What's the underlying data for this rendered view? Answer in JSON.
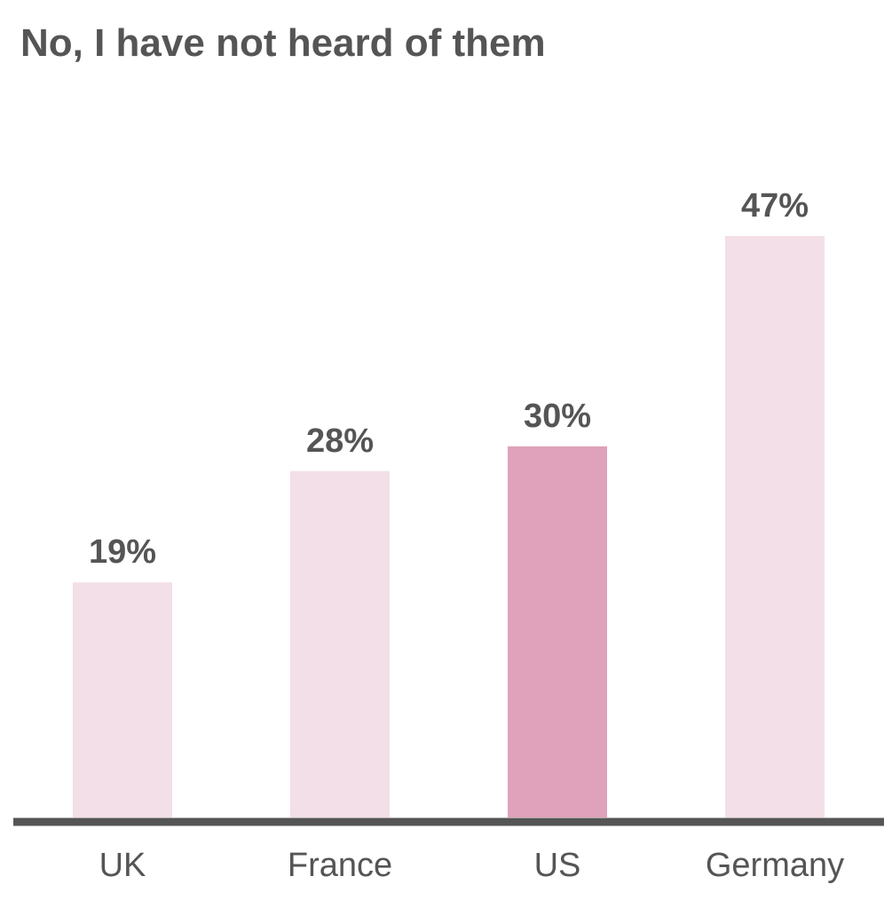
{
  "chart_data": {
    "type": "bar",
    "title": "No, I have not heard of them",
    "categories": [
      "UK",
      "France",
      "US",
      "Germany"
    ],
    "values": [
      19,
      28,
      30,
      47
    ],
    "value_labels": [
      "19%",
      "28%",
      "30%",
      "47%"
    ],
    "highlight_index": 2,
    "ylim": [
      0,
      47
    ],
    "xlabel": "",
    "ylabel": "",
    "grid": false,
    "legend": "none",
    "colors": {
      "bar": "#f3dfe7",
      "highlight": "#e0a2bb",
      "axis": "#555555",
      "value_text": "#555555",
      "category_text": "#555555"
    }
  }
}
